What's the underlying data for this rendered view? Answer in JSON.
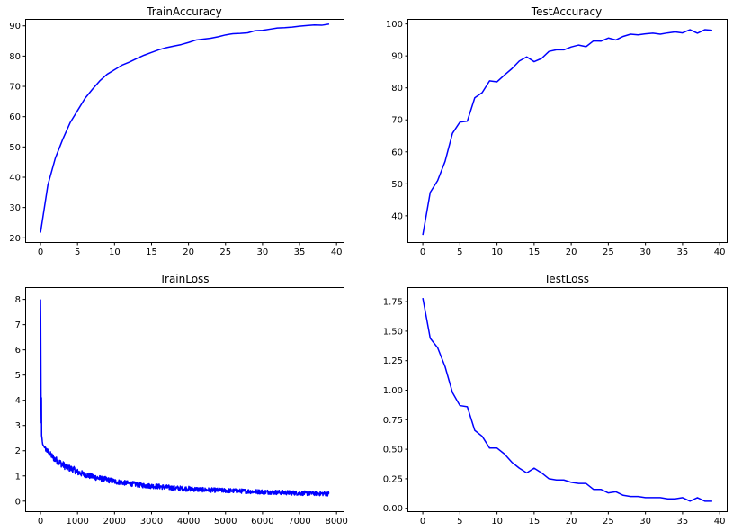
{
  "chart_data": [
    {
      "type": "line",
      "title": "TrainAccuracy",
      "xlim": [
        -1.95,
        40.95
      ],
      "ylim": [
        18.6,
        92.0
      ],
      "xticks": [
        0,
        5,
        10,
        15,
        20,
        25,
        30,
        35,
        40
      ],
      "yticks": [
        20,
        30,
        40,
        50,
        60,
        70,
        80,
        90
      ],
      "color": "#0000ff",
      "x": [
        0,
        1,
        2,
        3,
        4,
        5,
        6,
        7,
        8,
        9,
        10,
        11,
        12,
        13,
        14,
        15,
        16,
        17,
        18,
        19,
        20,
        21,
        22,
        23,
        24,
        25,
        26,
        27,
        28,
        29,
        30,
        31,
        32,
        33,
        34,
        35,
        36,
        37,
        38,
        39
      ],
      "y": [
        21.7,
        37.5,
        46.3,
        52.5,
        58.0,
        62.0,
        66.0,
        69.0,
        71.8,
        74.0,
        75.5,
        77.0,
        78.0,
        79.2,
        80.3,
        81.2,
        82.1,
        82.8,
        83.3,
        83.8,
        84.5,
        85.3,
        85.6,
        85.9,
        86.4,
        87.0,
        87.4,
        87.5,
        87.7,
        88.4,
        88.5,
        88.9,
        89.3,
        89.4,
        89.6,
        89.9,
        90.1,
        90.3,
        90.2,
        90.6
      ]
    },
    {
      "type": "line",
      "title": "TestAccuracy",
      "xlim": [
        -1.95,
        40.95
      ],
      "ylim": [
        31.8,
        101.3
      ],
      "xticks": [
        0,
        5,
        10,
        15,
        20,
        25,
        30,
        35,
        40
      ],
      "yticks": [
        40,
        50,
        60,
        70,
        80,
        90,
        100
      ],
      "color": "#0000ff",
      "x": [
        0,
        1,
        2,
        3,
        4,
        5,
        6,
        7,
        8,
        9,
        10,
        11,
        12,
        13,
        14,
        15,
        16,
        17,
        18,
        19,
        20,
        21,
        22,
        23,
        24,
        25,
        26,
        27,
        28,
        29,
        30,
        31,
        32,
        33,
        34,
        35,
        36,
        37,
        38,
        39
      ],
      "y": [
        34.0,
        47.3,
        51.0,
        57.0,
        65.8,
        69.3,
        69.6,
        76.9,
        78.5,
        82.2,
        81.9,
        84.0,
        86.0,
        88.4,
        89.7,
        88.2,
        89.2,
        91.4,
        91.9,
        91.9,
        92.8,
        93.4,
        92.9,
        94.7,
        94.6,
        95.6,
        95.0,
        96.1,
        96.8,
        96.6,
        96.9,
        97.1,
        96.8,
        97.2,
        97.5,
        97.2,
        98.2,
        97.1,
        98.2,
        98.0
      ]
    },
    {
      "type": "line",
      "title": "TrainLoss",
      "xlim": [
        -390,
        8190
      ],
      "ylim": [
        -0.4,
        8.45
      ],
      "xticks": [
        0,
        1000,
        2000,
        3000,
        4000,
        5000,
        6000,
        7000,
        8000
      ],
      "yticks": [
        0,
        1,
        2,
        3,
        4,
        5,
        6,
        7,
        8
      ],
      "color": "#0000ff",
      "x": [
        0,
        5,
        10,
        15,
        20,
        25,
        30,
        40,
        50,
        60,
        80,
        100,
        150,
        200,
        300,
        400,
        500,
        600,
        700,
        800,
        900,
        1000,
        1200,
        1400,
        1600,
        1800,
        2000,
        2200,
        2400,
        2600,
        2800,
        3000,
        3200,
        3400,
        3600,
        3800,
        4000,
        4200,
        4400,
        4600,
        4800,
        5000,
        5200,
        5400,
        5600,
        5800,
        6000,
        6200,
        6400,
        6600,
        6800,
        7000,
        7200,
        7400,
        7600,
        7800
      ],
      "y": [
        8.0,
        7.2,
        5.6,
        4.0,
        3.1,
        4.1,
        2.6,
        2.5,
        2.35,
        2.25,
        2.2,
        2.15,
        2.05,
        1.95,
        1.8,
        1.65,
        1.55,
        1.45,
        1.35,
        1.3,
        1.25,
        1.15,
        1.05,
        0.98,
        0.9,
        0.85,
        0.78,
        0.74,
        0.7,
        0.66,
        0.62,
        0.6,
        0.58,
        0.55,
        0.52,
        0.5,
        0.49,
        0.47,
        0.45,
        0.44,
        0.43,
        0.42,
        0.41,
        0.4,
        0.39,
        0.38,
        0.37,
        0.36,
        0.35,
        0.34,
        0.33,
        0.32,
        0.31,
        0.31,
        0.3,
        0.3
      ],
      "noise": [
        0,
        0,
        0,
        0,
        0,
        0,
        0,
        0,
        0,
        0,
        0,
        0,
        0.12,
        0.12,
        0.12,
        0.14,
        0.14,
        0.14,
        0.14,
        0.13,
        0.13,
        0.13,
        0.12,
        0.12,
        0.12,
        0.11,
        0.11,
        0.1,
        0.1,
        0.1,
        0.1,
        0.1,
        0.1,
        0.1,
        0.1,
        0.1,
        0.1,
        0.1,
        0.09,
        0.09,
        0.09,
        0.09,
        0.09,
        0.09,
        0.09,
        0.09,
        0.09,
        0.09,
        0.09,
        0.09,
        0.09,
        0.09,
        0.09,
        0.09,
        0.09,
        0.09
      ]
    },
    {
      "type": "line",
      "title": "TestLoss",
      "xlim": [
        -1.95,
        40.95
      ],
      "ylim": [
        -0.025,
        1.865
      ],
      "xticks": [
        0,
        5,
        10,
        15,
        20,
        25,
        30,
        35,
        40
      ],
      "yticks": [
        0.0,
        0.25,
        0.5,
        0.75,
        1.0,
        1.25,
        1.5,
        1.75
      ],
      "ytick_labels": [
        "0.00",
        "0.25",
        "0.50",
        "0.75",
        "1.00",
        "1.25",
        "1.50",
        "1.75"
      ],
      "color": "#0000ff",
      "x": [
        0,
        1,
        2,
        3,
        4,
        5,
        6,
        7,
        8,
        9,
        10,
        11,
        12,
        13,
        14,
        15,
        16,
        17,
        18,
        19,
        20,
        21,
        22,
        23,
        24,
        25,
        26,
        27,
        28,
        29,
        30,
        31,
        32,
        33,
        34,
        35,
        36,
        37,
        38,
        39
      ],
      "y": [
        1.78,
        1.44,
        1.36,
        1.2,
        0.98,
        0.87,
        0.86,
        0.66,
        0.61,
        0.51,
        0.51,
        0.46,
        0.39,
        0.34,
        0.3,
        0.34,
        0.3,
        0.25,
        0.24,
        0.24,
        0.22,
        0.21,
        0.21,
        0.16,
        0.16,
        0.13,
        0.14,
        0.11,
        0.1,
        0.1,
        0.09,
        0.09,
        0.09,
        0.08,
        0.08,
        0.09,
        0.06,
        0.09,
        0.06,
        0.06
      ]
    }
  ]
}
